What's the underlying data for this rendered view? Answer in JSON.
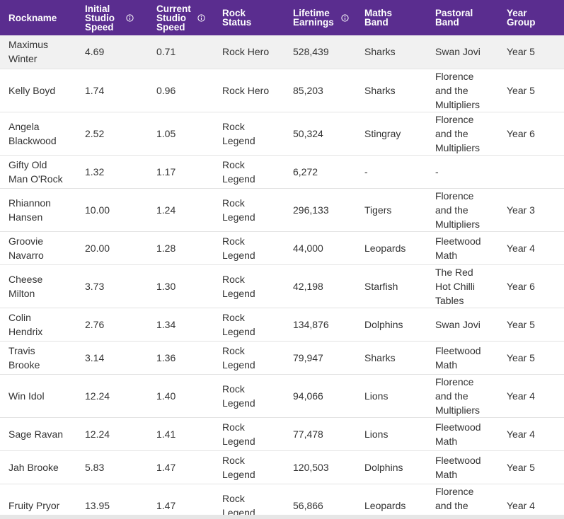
{
  "table": {
    "columns": [
      {
        "label": "Rockname",
        "info": false
      },
      {
        "label": "Initial Studio Speed",
        "info": true
      },
      {
        "label": "Current Studio Speed",
        "info": true
      },
      {
        "label": "Rock Status",
        "info": false
      },
      {
        "label": "Lifetime Earnings",
        "info": true
      },
      {
        "label": "Maths Band",
        "info": false
      },
      {
        "label": "Pastoral Band",
        "info": false
      },
      {
        "label": "Year Group",
        "info": false
      }
    ],
    "rows": [
      [
        "Maximus Winter",
        "4.69",
        "0.71",
        "Rock Hero",
        "528,439",
        "Sharks",
        "Swan Jovi",
        "Year 5"
      ],
      [
        "Kelly Boyd",
        "1.74",
        "0.96",
        "Rock Hero",
        "85,203",
        "Sharks",
        "Florence and the Multipliers",
        "Year 5"
      ],
      [
        "Angela Blackwood",
        "2.52",
        "1.05",
        "Rock Legend",
        "50,324",
        "Stingray",
        "Florence and the Multipliers",
        "Year 6"
      ],
      [
        "Gifty Old Man O'Rock",
        "1.32",
        "1.17",
        "Rock Legend",
        "6,272",
        "-",
        "-",
        ""
      ],
      [
        "Rhiannon Hansen",
        "10.00",
        "1.24",
        "Rock Legend",
        "296,133",
        "Tigers",
        "Florence and the Multipliers",
        "Year 3"
      ],
      [
        "Groovie Navarro",
        "20.00",
        "1.28",
        "Rock Legend",
        "44,000",
        "Leopards",
        "Fleetwood Math",
        "Year 4"
      ],
      [
        "Cheese Milton",
        "3.73",
        "1.30",
        "Rock Legend",
        "42,198",
        "Starfish",
        "The Red Hot Chilli Tables",
        "Year 6"
      ],
      [
        "Colin Hendrix",
        "2.76",
        "1.34",
        "Rock Legend",
        "134,876",
        "Dolphins",
        "Swan Jovi",
        "Year 5"
      ],
      [
        "Travis Brooke",
        "3.14",
        "1.36",
        "Rock Legend",
        "79,947",
        "Sharks",
        "Fleetwood Math",
        "Year 5"
      ],
      [
        "Win Idol",
        "12.24",
        "1.40",
        "Rock Legend",
        "94,066",
        "Lions",
        "Florence and the Multipliers",
        "Year 4"
      ],
      [
        "Sage Ravan",
        "12.24",
        "1.41",
        "Rock Legend",
        "77,478",
        "Lions",
        "Fleetwood Math",
        "Year 4"
      ],
      [
        "Jah Brooke",
        "5.83",
        "1.47",
        "Rock Legend",
        "120,503",
        "Dolphins",
        "Fleetwood Math",
        "Year 5"
      ],
      [
        "Fruity Pryor",
        "13.95",
        "1.47",
        "Rock Legend",
        "56,866",
        "Leopards",
        "Florence and the Multipliers",
        "Year 4"
      ]
    ],
    "highlighted_row": 0
  }
}
